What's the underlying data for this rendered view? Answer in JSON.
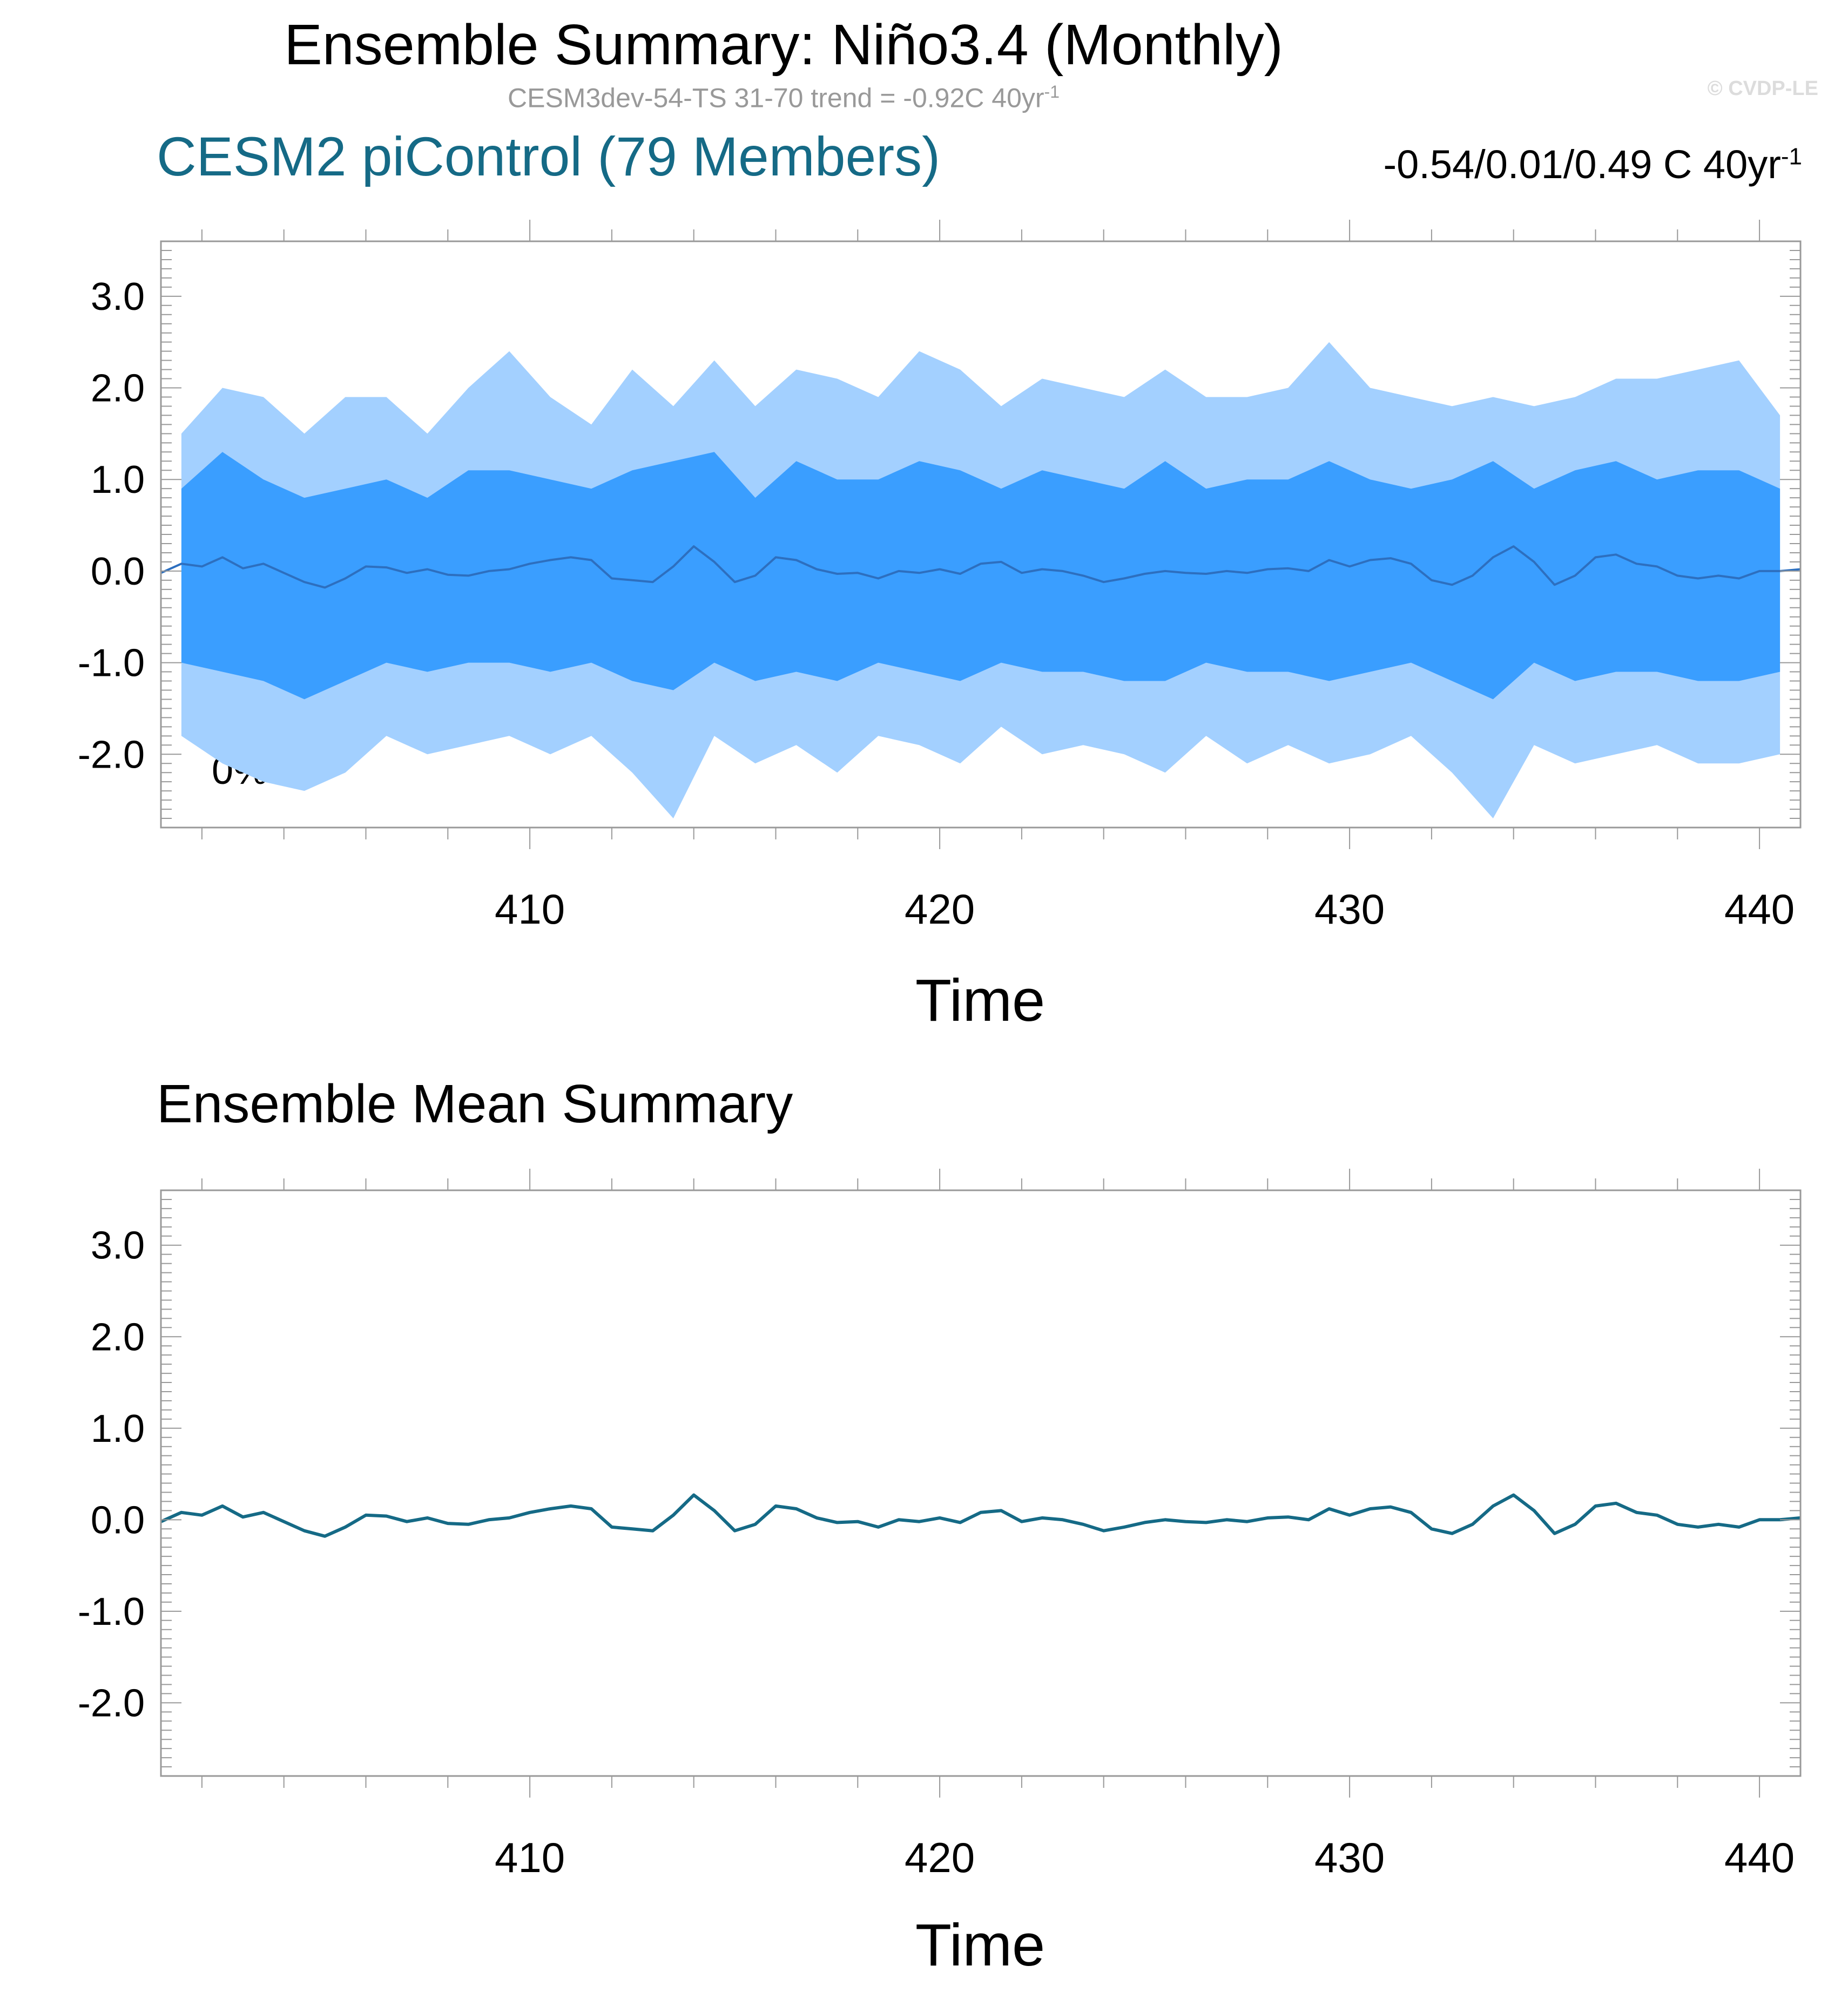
{
  "figure": {
    "title": "Ensemble Summary: Niño3.4 (Monthly)",
    "subtitle_text": "CESM3dev-54-TS 31-70 trend = -0.92C 40yr",
    "subtitle_sup": "-1",
    "watermark": "© CVDP-LE"
  },
  "colors": {
    "outer_band": "#a3d0ff",
    "inner_band": "#3a9eff",
    "top_mean_line": "#2d6fbf",
    "bottom_mean_line": "#156a86",
    "panel_title": "#156a86",
    "axis": "#999999"
  },
  "chart_data": [
    {
      "type": "area",
      "title": "CESM2 piControl (79 Members)",
      "right_annotation": "-0.54/0.01/0.49 C 40yr",
      "right_annotation_sup": "-1",
      "corner_annotation": "0%",
      "xlabel": "Time",
      "ylabel": "",
      "xlim": [
        401,
        441
      ],
      "ylim": [
        -2.8,
        3.6
      ],
      "xticks": [
        410,
        420,
        430,
        440
      ],
      "yticks": [
        3.0,
        2.0,
        1.0,
        0.0,
        -1.0,
        -2.0
      ],
      "ytick_labels": [
        "3.0",
        "2.0",
        "1.0",
        "0.0",
        "-1.0",
        "-2.0"
      ],
      "xtick_labels": [
        "410",
        "420",
        "430",
        "440"
      ],
      "grid": false,
      "series": [
        {
          "role": "outer_band",
          "x": [
            401.5,
            402.5,
            403.5,
            404.5,
            405.5,
            406.5,
            407.5,
            408.5,
            409.5,
            410.5,
            411.5,
            412.5,
            413.5,
            414.5,
            415.5,
            416.5,
            417.5,
            418.5,
            419.5,
            420.5,
            421.5,
            422.5,
            423.5,
            424.5,
            425.5,
            426.5,
            427.5,
            428.5,
            429.5,
            430.5,
            431.5,
            432.5,
            433.5,
            434.5,
            435.5,
            436.5,
            437.5,
            438.5,
            439.5,
            440.5
          ],
          "upper": [
            1.5,
            2.0,
            1.9,
            1.5,
            1.9,
            1.9,
            1.5,
            2.0,
            2.4,
            1.9,
            1.6,
            2.2,
            1.8,
            2.3,
            1.8,
            2.2,
            2.1,
            1.9,
            2.4,
            2.2,
            1.8,
            2.1,
            2.0,
            1.9,
            2.2,
            1.9,
            1.9,
            2.0,
            2.5,
            2.0,
            1.9,
            1.8,
            1.9,
            1.8,
            1.9,
            2.1,
            2.1,
            2.2,
            2.3,
            1.7
          ],
          "lower": [
            -1.8,
            -2.1,
            -2.3,
            -2.4,
            -2.2,
            -1.8,
            -2.0,
            -1.9,
            -1.8,
            -2.0,
            -1.8,
            -2.2,
            -2.7,
            -1.8,
            -2.1,
            -1.9,
            -2.2,
            -1.8,
            -1.9,
            -2.1,
            -1.7,
            -2.0,
            -1.9,
            -2.0,
            -2.2,
            -1.8,
            -2.1,
            -1.9,
            -2.1,
            -2.0,
            -1.8,
            -2.2,
            -2.7,
            -1.9,
            -2.1,
            -2.0,
            -1.9,
            -2.1,
            -2.1,
            -2.0
          ]
        },
        {
          "role": "inner_band",
          "x": [
            401.5,
            402.5,
            403.5,
            404.5,
            405.5,
            406.5,
            407.5,
            408.5,
            409.5,
            410.5,
            411.5,
            412.5,
            413.5,
            414.5,
            415.5,
            416.5,
            417.5,
            418.5,
            419.5,
            420.5,
            421.5,
            422.5,
            423.5,
            424.5,
            425.5,
            426.5,
            427.5,
            428.5,
            429.5,
            430.5,
            431.5,
            432.5,
            433.5,
            434.5,
            435.5,
            436.5,
            437.5,
            438.5,
            439.5,
            440.5
          ],
          "upper": [
            0.9,
            1.3,
            1.0,
            0.8,
            0.9,
            1.0,
            0.8,
            1.1,
            1.1,
            1.0,
            0.9,
            1.1,
            1.2,
            1.3,
            0.8,
            1.2,
            1.0,
            1.0,
            1.2,
            1.1,
            0.9,
            1.1,
            1.0,
            0.9,
            1.2,
            0.9,
            1.0,
            1.0,
            1.2,
            1.0,
            0.9,
            1.0,
            1.2,
            0.9,
            1.1,
            1.2,
            1.0,
            1.1,
            1.1,
            0.9
          ],
          "lower": [
            -1.0,
            -1.1,
            -1.2,
            -1.4,
            -1.2,
            -1.0,
            -1.1,
            -1.0,
            -1.0,
            -1.1,
            -1.0,
            -1.2,
            -1.3,
            -1.0,
            -1.2,
            -1.1,
            -1.2,
            -1.0,
            -1.1,
            -1.2,
            -1.0,
            -1.1,
            -1.1,
            -1.2,
            -1.2,
            -1.0,
            -1.1,
            -1.1,
            -1.2,
            -1.1,
            -1.0,
            -1.2,
            -1.4,
            -1.0,
            -1.2,
            -1.1,
            -1.1,
            -1.2,
            -1.2,
            -1.1
          ]
        },
        {
          "role": "ensemble_mean",
          "x": [
            401.0,
            401.5,
            402.0,
            402.5,
            403.0,
            403.5,
            404.0,
            404.5,
            405.0,
            405.5,
            406.0,
            406.5,
            407.0,
            407.5,
            408.0,
            408.5,
            409.0,
            409.5,
            410.0,
            410.5,
            411.0,
            411.5,
            412.0,
            412.5,
            413.0,
            413.5,
            414.0,
            414.5,
            415.0,
            415.5,
            416.0,
            416.5,
            417.0,
            417.5,
            418.0,
            418.5,
            419.0,
            419.5,
            420.0,
            420.5,
            421.0,
            421.5,
            422.0,
            422.5,
            423.0,
            423.5,
            424.0,
            424.5,
            425.0,
            425.5,
            426.0,
            426.5,
            427.0,
            427.5,
            428.0,
            428.5,
            429.0,
            429.5,
            430.0,
            430.5,
            431.0,
            431.5,
            432.0,
            432.5,
            433.0,
            433.5,
            434.0,
            434.5,
            435.0,
            435.5,
            436.0,
            436.5,
            437.0,
            437.5,
            438.0,
            438.5,
            439.0,
            439.5,
            440.0,
            440.5,
            441.0
          ],
          "y": [
            -0.02,
            0.08,
            0.05,
            0.15,
            0.03,
            0.08,
            -0.02,
            -0.12,
            -0.18,
            -0.08,
            0.05,
            0.04,
            -0.02,
            0.02,
            -0.04,
            -0.05,
            0.0,
            0.02,
            0.08,
            0.12,
            0.15,
            0.12,
            -0.08,
            -0.1,
            -0.12,
            0.05,
            0.27,
            0.1,
            -0.12,
            -0.05,
            0.15,
            0.12,
            0.02,
            -0.03,
            -0.02,
            -0.08,
            0.0,
            -0.02,
            0.02,
            -0.03,
            0.08,
            0.1,
            -0.02,
            0.02,
            0.0,
            -0.05,
            -0.12,
            -0.08,
            -0.03,
            0.0,
            -0.02,
            -0.03,
            0.0,
            -0.02,
            0.02,
            0.03,
            0.0,
            0.12,
            0.05,
            0.12,
            0.14,
            0.08,
            -0.1,
            -0.15,
            -0.05,
            0.15,
            0.27,
            0.1,
            -0.15,
            -0.05,
            0.15,
            0.18,
            0.08,
            0.05,
            -0.05,
            -0.08,
            -0.05,
            -0.08,
            0.0,
            0.0,
            0.02
          ]
        }
      ]
    },
    {
      "type": "line",
      "title": "Ensemble Mean Summary",
      "xlabel": "Time",
      "ylabel": "",
      "xlim": [
        401,
        441
      ],
      "ylim": [
        -2.8,
        3.6
      ],
      "xticks": [
        410,
        420,
        430,
        440
      ],
      "yticks": [
        3.0,
        2.0,
        1.0,
        0.0,
        -1.0,
        -2.0
      ],
      "ytick_labels": [
        "3.0",
        "2.0",
        "1.0",
        "0.0",
        "-1.0",
        "-2.0"
      ],
      "xtick_labels": [
        "410",
        "420",
        "430",
        "440"
      ],
      "grid": false,
      "series": [
        {
          "role": "ensemble_mean",
          "x": [
            401.0,
            401.5,
            402.0,
            402.5,
            403.0,
            403.5,
            404.0,
            404.5,
            405.0,
            405.5,
            406.0,
            406.5,
            407.0,
            407.5,
            408.0,
            408.5,
            409.0,
            409.5,
            410.0,
            410.5,
            411.0,
            411.5,
            412.0,
            412.5,
            413.0,
            413.5,
            414.0,
            414.5,
            415.0,
            415.5,
            416.0,
            416.5,
            417.0,
            417.5,
            418.0,
            418.5,
            419.0,
            419.5,
            420.0,
            420.5,
            421.0,
            421.5,
            422.0,
            422.5,
            423.0,
            423.5,
            424.0,
            424.5,
            425.0,
            425.5,
            426.0,
            426.5,
            427.0,
            427.5,
            428.0,
            428.5,
            429.0,
            429.5,
            430.0,
            430.5,
            431.0,
            431.5,
            432.0,
            432.5,
            433.0,
            433.5,
            434.0,
            434.5,
            435.0,
            435.5,
            436.0,
            436.5,
            437.0,
            437.5,
            438.0,
            438.5,
            439.0,
            439.5,
            440.0,
            440.5,
            441.0
          ],
          "y": [
            -0.02,
            0.08,
            0.05,
            0.15,
            0.03,
            0.08,
            -0.02,
            -0.12,
            -0.18,
            -0.08,
            0.05,
            0.04,
            -0.02,
            0.02,
            -0.04,
            -0.05,
            0.0,
            0.02,
            0.08,
            0.12,
            0.15,
            0.12,
            -0.08,
            -0.1,
            -0.12,
            0.05,
            0.27,
            0.1,
            -0.12,
            -0.05,
            0.15,
            0.12,
            0.02,
            -0.03,
            -0.02,
            -0.08,
            0.0,
            -0.02,
            0.02,
            -0.03,
            0.08,
            0.1,
            -0.02,
            0.02,
            0.0,
            -0.05,
            -0.12,
            -0.08,
            -0.03,
            0.0,
            -0.02,
            -0.03,
            0.0,
            -0.02,
            0.02,
            0.03,
            0.0,
            0.12,
            0.05,
            0.12,
            0.14,
            0.08,
            -0.1,
            -0.15,
            -0.05,
            0.15,
            0.27,
            0.1,
            -0.15,
            -0.05,
            0.15,
            0.18,
            0.08,
            0.05,
            -0.05,
            -0.08,
            -0.05,
            -0.08,
            0.0,
            0.0,
            0.02
          ]
        }
      ]
    }
  ]
}
